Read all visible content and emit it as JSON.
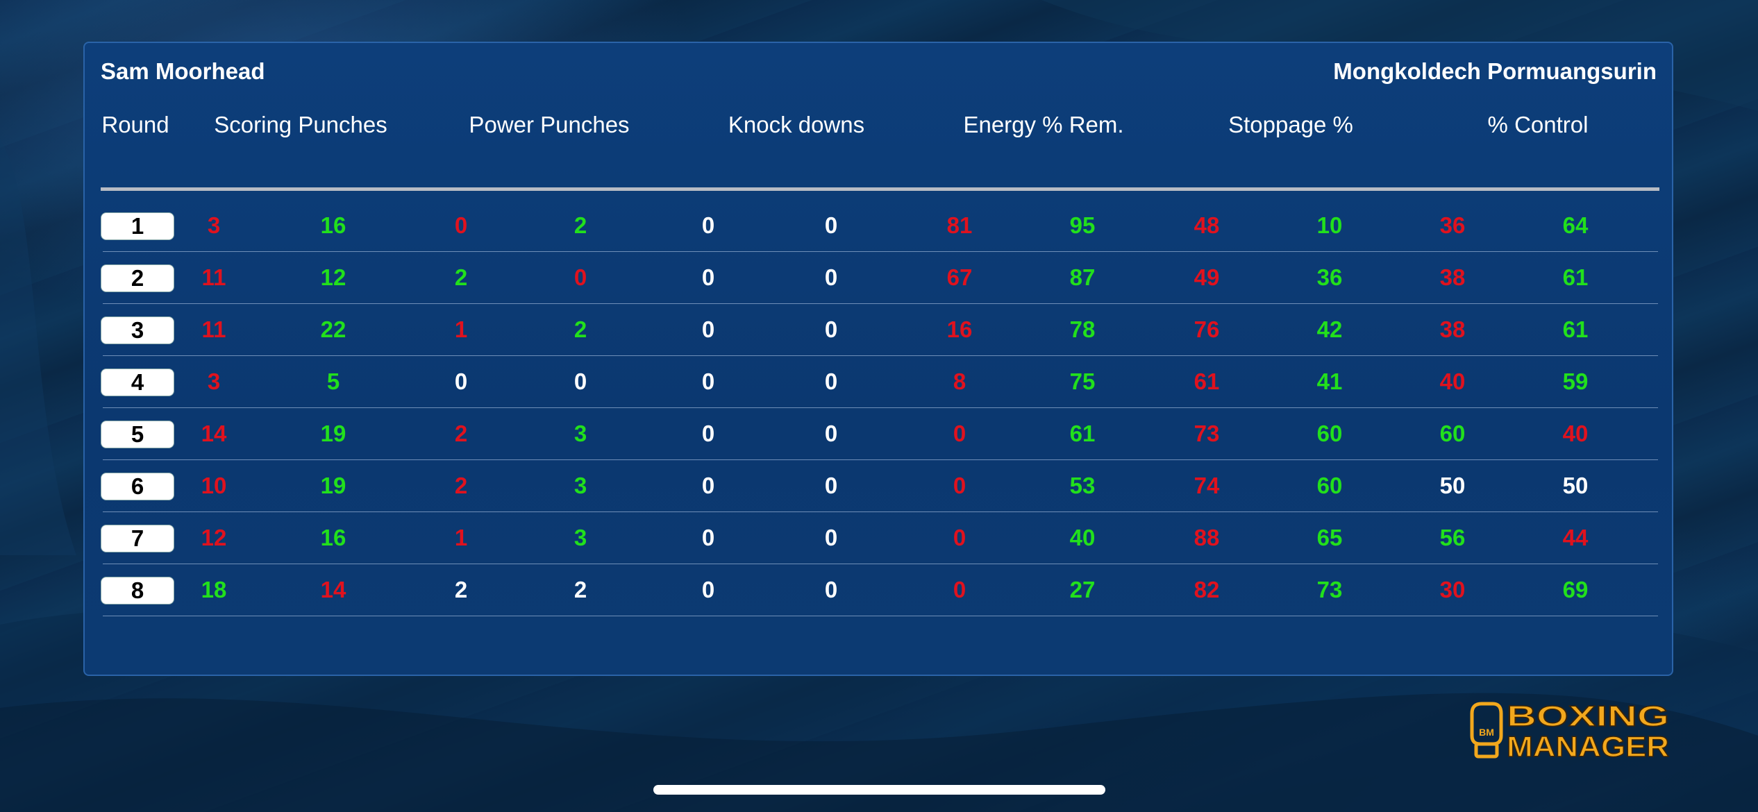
{
  "fighters": {
    "left": "Sam Moorhead",
    "right": "Mongkoldech Pormuangsurin"
  },
  "columns": [
    "Round",
    "Scoring Punches",
    "Power Punches",
    "Knock downs",
    "Energy % Rem.",
    "Stoppage %",
    "% Control"
  ],
  "colors": {
    "red": "#e0121e",
    "green": "#22e01c",
    "white": "#ffffff"
  },
  "rows": [
    {
      "round": "1",
      "cells": [
        [
          "3",
          "red"
        ],
        [
          "16",
          "green"
        ],
        [
          "0",
          "red"
        ],
        [
          "2",
          "green"
        ],
        [
          "0",
          "white"
        ],
        [
          "0",
          "white"
        ],
        [
          "81",
          "red"
        ],
        [
          "95",
          "green"
        ],
        [
          "48",
          "red"
        ],
        [
          "10",
          "green"
        ],
        [
          "36",
          "red"
        ],
        [
          "64",
          "green"
        ]
      ]
    },
    {
      "round": "2",
      "cells": [
        [
          "11",
          "red"
        ],
        [
          "12",
          "green"
        ],
        [
          "2",
          "green"
        ],
        [
          "0",
          "red"
        ],
        [
          "0",
          "white"
        ],
        [
          "0",
          "white"
        ],
        [
          "67",
          "red"
        ],
        [
          "87",
          "green"
        ],
        [
          "49",
          "red"
        ],
        [
          "36",
          "green"
        ],
        [
          "38",
          "red"
        ],
        [
          "61",
          "green"
        ]
      ]
    },
    {
      "round": "3",
      "cells": [
        [
          "11",
          "red"
        ],
        [
          "22",
          "green"
        ],
        [
          "1",
          "red"
        ],
        [
          "2",
          "green"
        ],
        [
          "0",
          "white"
        ],
        [
          "0",
          "white"
        ],
        [
          "16",
          "red"
        ],
        [
          "78",
          "green"
        ],
        [
          "76",
          "red"
        ],
        [
          "42",
          "green"
        ],
        [
          "38",
          "red"
        ],
        [
          "61",
          "green"
        ]
      ]
    },
    {
      "round": "4",
      "cells": [
        [
          "3",
          "red"
        ],
        [
          "5",
          "green"
        ],
        [
          "0",
          "white"
        ],
        [
          "0",
          "white"
        ],
        [
          "0",
          "white"
        ],
        [
          "0",
          "white"
        ],
        [
          "8",
          "red"
        ],
        [
          "75",
          "green"
        ],
        [
          "61",
          "red"
        ],
        [
          "41",
          "green"
        ],
        [
          "40",
          "red"
        ],
        [
          "59",
          "green"
        ]
      ]
    },
    {
      "round": "5",
      "cells": [
        [
          "14",
          "red"
        ],
        [
          "19",
          "green"
        ],
        [
          "2",
          "red"
        ],
        [
          "3",
          "green"
        ],
        [
          "0",
          "white"
        ],
        [
          "0",
          "white"
        ],
        [
          "0",
          "red"
        ],
        [
          "61",
          "green"
        ],
        [
          "73",
          "red"
        ],
        [
          "60",
          "green"
        ],
        [
          "60",
          "green"
        ],
        [
          "40",
          "red"
        ]
      ]
    },
    {
      "round": "6",
      "cells": [
        [
          "10",
          "red"
        ],
        [
          "19",
          "green"
        ],
        [
          "2",
          "red"
        ],
        [
          "3",
          "green"
        ],
        [
          "0",
          "white"
        ],
        [
          "0",
          "white"
        ],
        [
          "0",
          "red"
        ],
        [
          "53",
          "green"
        ],
        [
          "74",
          "red"
        ],
        [
          "60",
          "green"
        ],
        [
          "50",
          "white"
        ],
        [
          "50",
          "white"
        ]
      ]
    },
    {
      "round": "7",
      "cells": [
        [
          "12",
          "red"
        ],
        [
          "16",
          "green"
        ],
        [
          "1",
          "red"
        ],
        [
          "3",
          "green"
        ],
        [
          "0",
          "white"
        ],
        [
          "0",
          "white"
        ],
        [
          "0",
          "red"
        ],
        [
          "40",
          "green"
        ],
        [
          "88",
          "red"
        ],
        [
          "65",
          "green"
        ],
        [
          "56",
          "green"
        ],
        [
          "44",
          "red"
        ]
      ]
    },
    {
      "round": "8",
      "cells": [
        [
          "18",
          "green"
        ],
        [
          "14",
          "red"
        ],
        [
          "2",
          "white"
        ],
        [
          "2",
          "white"
        ],
        [
          "0",
          "white"
        ],
        [
          "0",
          "white"
        ],
        [
          "0",
          "red"
        ],
        [
          "27",
          "green"
        ],
        [
          "82",
          "red"
        ],
        [
          "73",
          "green"
        ],
        [
          "30",
          "red"
        ],
        [
          "69",
          "green"
        ]
      ]
    }
  ],
  "logo": {
    "line1": "BOXING",
    "line2": "MANAGER",
    "badge": "BM",
    "color": "#f2a81d"
  }
}
